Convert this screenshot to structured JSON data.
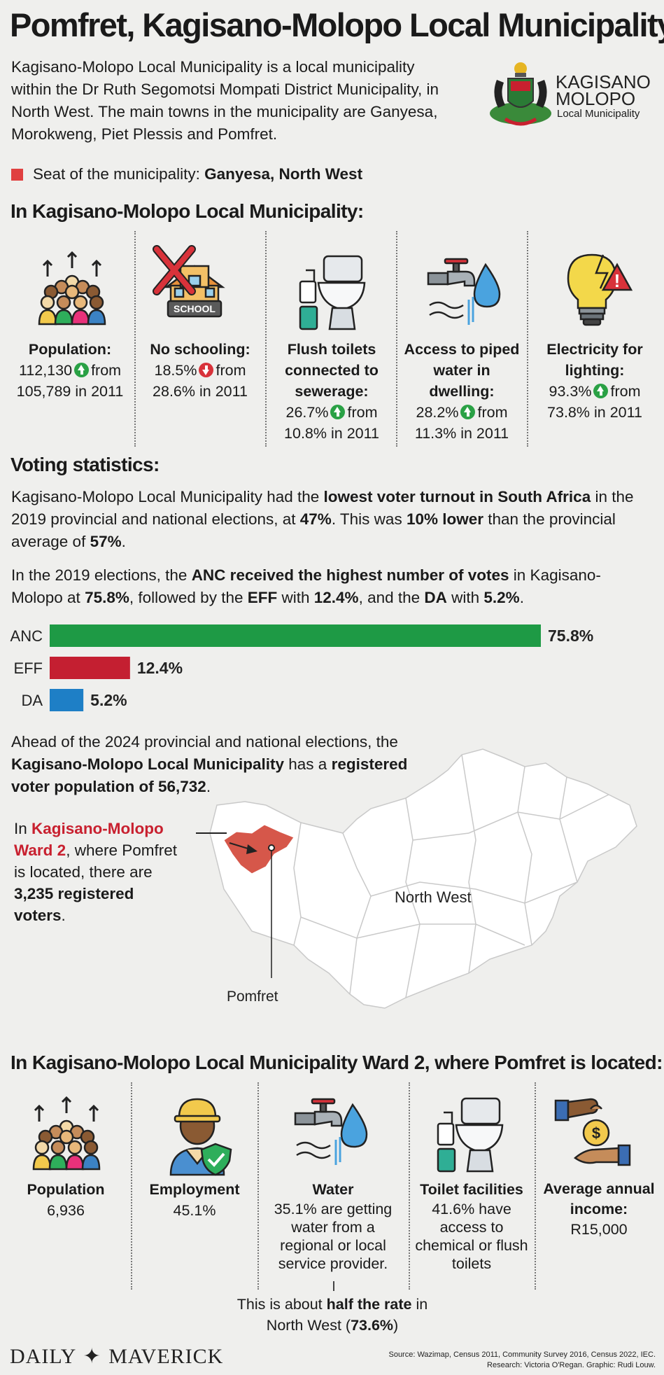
{
  "title": "Pomfret, Kagisano-Molopo Local Municipality",
  "intro": "Kagisano-Molopo Local Municipality is a local municipality within the Dr Ruth Segomotsi Mompati District Municipality, in North West. The main towns in the municipality are Ganyesa, Morokweng, Piet Plessis and Pomfret.",
  "seat": {
    "label": "Seat of the municipality:",
    "value": "Ganyesa, North West"
  },
  "logo": {
    "line1": "KAGISANO",
    "line2": "MOLOPO",
    "line3": "Local Municipality"
  },
  "section1": {
    "heading": "In Kagisano-Molopo Local Municipality:",
    "stats": [
      {
        "icon": "population-icon",
        "label": "Population:",
        "value_a": "112,130",
        "trend": "up",
        "value_b": "from",
        "value_c": "105,789 in 2011"
      },
      {
        "icon": "no-school-icon",
        "label": "No schooling:",
        "value_a": "18.5%",
        "trend": "down",
        "value_b": "from",
        "value_c": "28.6% in 2011",
        "icon_text": "SCHOOL"
      },
      {
        "icon": "toilet-icon",
        "label": "Flush toilets connected to sewerage:",
        "value_a": "26.7%",
        "trend": "up",
        "value_b": "from",
        "value_c": "10.8% in 2011"
      },
      {
        "icon": "water-tap-icon",
        "label": "Access to piped water in dwelling:",
        "value_a": "28.2%",
        "trend": "up",
        "value_b": "from",
        "value_c": "11.3% in 2011"
      },
      {
        "icon": "lightbulb-warning-icon",
        "label": "Electricity for lighting:",
        "value_a": "93.3%",
        "trend": "up",
        "value_b": "from",
        "value_c": "73.8% in 2011"
      }
    ]
  },
  "voting": {
    "heading": "Voting statistics:",
    "p1": {
      "a": "Kagisano-Molopo Local Municipality had the ",
      "b": "lowest voter turnout in South Africa",
      "c": " in the 2019 provincial and national elections, at ",
      "d": "47%",
      "e": ". This was ",
      "f": "10% lower",
      "g": " than the provincial average of ",
      "h": "57%",
      "i": "."
    },
    "p2": {
      "a": "In the 2019 elections, the ",
      "b": "ANC received the highest number of votes",
      "c": " in Kagisano-Molopo at ",
      "d": "75.8%",
      "e": ", followed by the ",
      "f": "EFF",
      "g": " with ",
      "h": "12.4%",
      "i": ", and the ",
      "j": "DA",
      "k": " with ",
      "l": "5.2%",
      "m": "."
    }
  },
  "chart_data": {
    "type": "bar",
    "orientation": "horizontal",
    "categories": [
      "ANC",
      "EFF",
      "DA"
    ],
    "values": [
      75.8,
      12.4,
      5.2
    ],
    "value_labels": [
      "75.8%",
      "12.4%",
      "5.2%"
    ],
    "colors": [
      "#1e9a45",
      "#c41f31",
      "#1e7fc6"
    ],
    "title": "",
    "xlabel": "",
    "ylabel": ""
  },
  "registration": {
    "a": "Ahead of the 2024 provincial and national elections, the ",
    "b": "Kagisano-Molopo Local Municipality",
    "c": " has a ",
    "d": "registered voter population of 56,732",
    "e": "."
  },
  "ward": {
    "a": "In ",
    "b": "Kagisano-Molopo Ward 2",
    "c": ", where Pomfret is located, there are ",
    "d": "3,235 registered voters",
    "e": "."
  },
  "map": {
    "province_label": "North West",
    "town_label": "Pomfret",
    "highlight_color": "#d6574a"
  },
  "section2": {
    "heading": "In Kagisano-Molopo Local Municipality Ward 2, where Pomfret is located:",
    "stats": [
      {
        "icon": "population-icon",
        "label": "Population",
        "value": "6,936"
      },
      {
        "icon": "worker-icon",
        "label": "Employment",
        "value": "45.1%"
      },
      {
        "icon": "water-tap-icon",
        "label": "Water",
        "value": "35.1% are getting water from a regional or local service provider."
      },
      {
        "icon": "toilet-icon",
        "label": "Toilet facilities",
        "value": "41.6% have access to chemical or flush toilets"
      },
      {
        "icon": "money-hand-icon",
        "label": "Average annual income:",
        "value": "R15,000"
      }
    ],
    "note": {
      "a": "This is about ",
      "b": "half the rate",
      "c": " in North West (",
      "d": "73.6%",
      "e": ")"
    }
  },
  "footer": {
    "brand_left": "DAILY",
    "brand_right": "MAVERICK",
    "source": "Source: Wazimap, Census 2011, Community Survey 2016, Census 2022, IEC.",
    "credits": "Research: Victoria O'Regan. Graphic: Rudi Louw."
  }
}
